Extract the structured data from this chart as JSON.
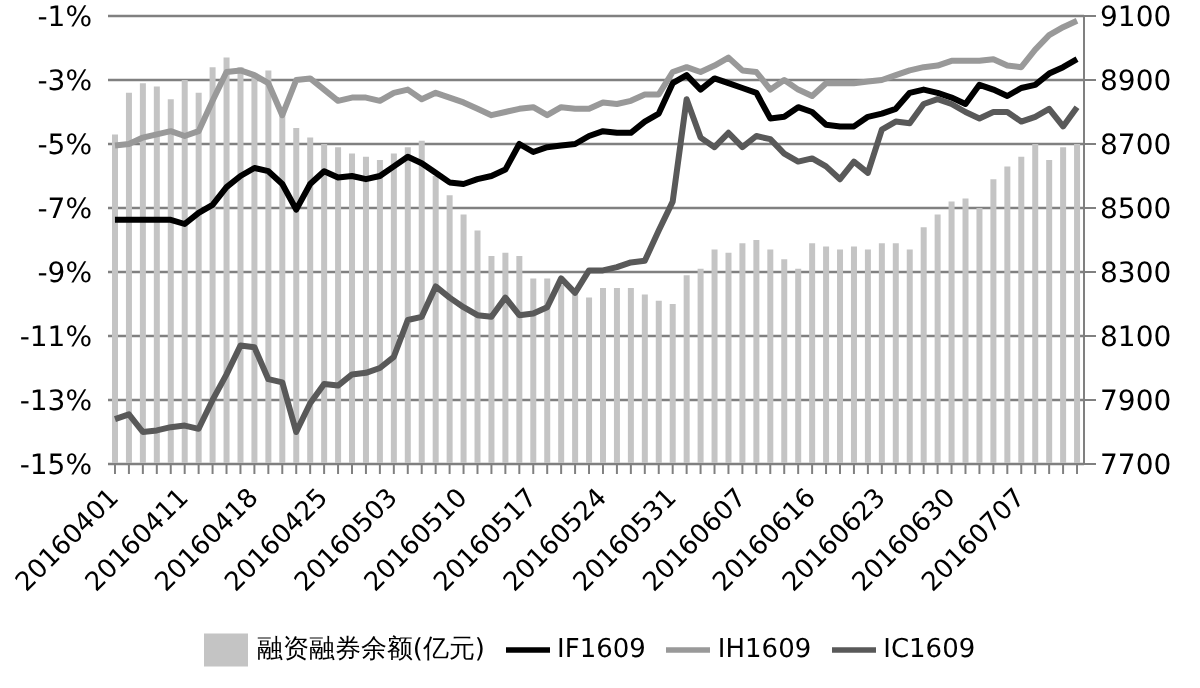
{
  "chart_data": {
    "type": "line",
    "categories": [
      "20160401",
      null,
      null,
      null,
      null,
      "20160411",
      null,
      null,
      null,
      null,
      "20160418",
      null,
      null,
      null,
      null,
      "20160425",
      null,
      null,
      null,
      null,
      "20160503",
      null,
      null,
      null,
      null,
      "20160510",
      null,
      null,
      null,
      null,
      "20160517",
      null,
      null,
      null,
      null,
      "20160524",
      null,
      null,
      null,
      null,
      "20160531",
      null,
      null,
      null,
      null,
      "20160607",
      null,
      null,
      null,
      null,
      "20160616",
      null,
      null,
      null,
      null,
      "20160623",
      null,
      null,
      null,
      null,
      "20160630",
      null,
      null,
      null,
      null,
      "20160707",
      null,
      null,
      null,
      null
    ],
    "series": [
      {
        "name": "融资融券余额(亿元)",
        "type": "bar",
        "axis": "y2",
        "color": "#c4c4c4",
        "values": [
          8730,
          8860,
          8890,
          8880,
          8840,
          8900,
          8860,
          8940,
          8970,
          8940,
          8920,
          8930,
          8800,
          8750,
          8720,
          8700,
          8690,
          8670,
          8660,
          8650,
          8670,
          8690,
          8710,
          8600,
          8540,
          8480,
          8430,
          8350,
          8360,
          8350,
          8280,
          8280,
          8260,
          8230,
          8220,
          8250,
          8250,
          8250,
          8230,
          8210,
          8200,
          8290,
          8310,
          8370,
          8360,
          8390,
          8400,
          8370,
          8340,
          8310,
          8390,
          8380,
          8370,
          8380,
          8370,
          8390,
          8390,
          8370,
          8440,
          8480,
          8520,
          8530,
          8500,
          8590,
          8630,
          8660,
          8700,
          8650,
          8690,
          8700
        ]
      },
      {
        "name": "IF1609",
        "color": "#000000",
        "values": [
          -7.37,
          -7.37,
          -7.37,
          -7.37,
          -7.37,
          -7.5,
          -7.15,
          -6.9,
          -6.35,
          -6.0,
          -5.75,
          -5.85,
          -6.25,
          -7.05,
          -6.25,
          -5.85,
          -6.05,
          -6.0,
          -6.1,
          -6.0,
          -5.7,
          -5.4,
          -5.6,
          -5.9,
          -6.2,
          -6.25,
          -6.1,
          -6.0,
          -5.8,
          -5.0,
          -5.25,
          -5.1,
          -5.05,
          -5.0,
          -4.75,
          -4.6,
          -4.65,
          -4.65,
          -4.3,
          -4.05,
          -3.1,
          -2.85,
          -3.3,
          -2.95,
          -3.1,
          -3.25,
          -3.4,
          -4.2,
          -4.15,
          -3.85,
          -4.0,
          -4.4,
          -4.45,
          -4.45,
          -4.15,
          -4.05,
          -3.9,
          -3.4,
          -3.3,
          -3.4,
          -3.55,
          -3.75,
          -3.15,
          -3.3,
          -3.5,
          -3.25,
          -3.15,
          -2.8,
          -2.6,
          -2.35
        ]
      },
      {
        "name": "IH1609",
        "color": "#999999",
        "values": [
          -5.05,
          -5.0,
          -4.8,
          -4.7,
          -4.6,
          -4.75,
          -4.6,
          -3.65,
          -2.75,
          -2.7,
          -2.85,
          -3.1,
          -4.1,
          -3.0,
          -2.95,
          -3.3,
          -3.65,
          -3.55,
          -3.55,
          -3.65,
          -3.4,
          -3.3,
          -3.6,
          -3.4,
          -3.55,
          -3.7,
          -3.9,
          -4.1,
          -4.0,
          -3.9,
          -3.85,
          -4.1,
          -3.85,
          -3.9,
          -3.9,
          -3.7,
          -3.75,
          -3.65,
          -3.45,
          -3.45,
          -2.75,
          -2.6,
          -2.75,
          -2.55,
          -2.3,
          -2.7,
          -2.75,
          -3.3,
          -3.0,
          -3.3,
          -3.5,
          -3.1,
          -3.1,
          -3.1,
          -3.05,
          -3.0,
          -2.85,
          -2.7,
          -2.6,
          -2.55,
          -2.4,
          -2.4,
          -2.4,
          -2.35,
          -2.55,
          -2.6,
          -2.05,
          -1.6,
          -1.35,
          -1.15
        ]
      },
      {
        "name": "IC1609",
        "color": "#595959",
        "values": [
          -13.6,
          -13.45,
          -14.0,
          -13.95,
          -13.85,
          -13.8,
          -13.9,
          -13.0,
          -12.2,
          -11.3,
          -11.35,
          -12.35,
          -12.45,
          -14.0,
          -13.1,
          -12.5,
          -12.55,
          -12.2,
          -12.15,
          -12.0,
          -11.65,
          -10.5,
          -10.4,
          -9.45,
          -9.8,
          -10.1,
          -10.35,
          -10.4,
          -9.8,
          -10.35,
          -10.3,
          -10.1,
          -9.2,
          -9.65,
          -8.95,
          -8.95,
          -8.85,
          -8.7,
          -8.65,
          -7.7,
          -6.8,
          -3.6,
          -4.8,
          -5.1,
          -4.65,
          -5.1,
          -4.75,
          -4.85,
          -5.3,
          -5.55,
          -5.45,
          -5.7,
          -6.1,
          -5.55,
          -5.9,
          -4.55,
          -4.3,
          -4.35,
          -3.75,
          -3.6,
          -3.75,
          -4.0,
          -4.2,
          -4.0,
          -4.0,
          -4.3,
          -4.15,
          -3.9,
          -4.45,
          -3.85
        ]
      }
    ],
    "ylim": [
      -15,
      -1
    ],
    "yticks": [
      {
        "value": -15,
        "label": "-15%"
      },
      {
        "value": -13,
        "label": "-13%"
      },
      {
        "value": -11,
        "label": "-11%"
      },
      {
        "value": -9,
        "label": "-9%"
      },
      {
        "value": -7,
        "label": "-7%"
      },
      {
        "value": -5,
        "label": "-5%"
      },
      {
        "value": -3,
        "label": "-3%"
      },
      {
        "value": -1,
        "label": "-1%"
      }
    ],
    "y2lim": [
      7700,
      9100
    ],
    "y2ticks": [
      7700,
      7900,
      8100,
      8300,
      8500,
      8700,
      8900,
      9100
    ],
    "grid": "y",
    "legend": "bottom",
    "marker": "none",
    "line_style": "solid"
  }
}
